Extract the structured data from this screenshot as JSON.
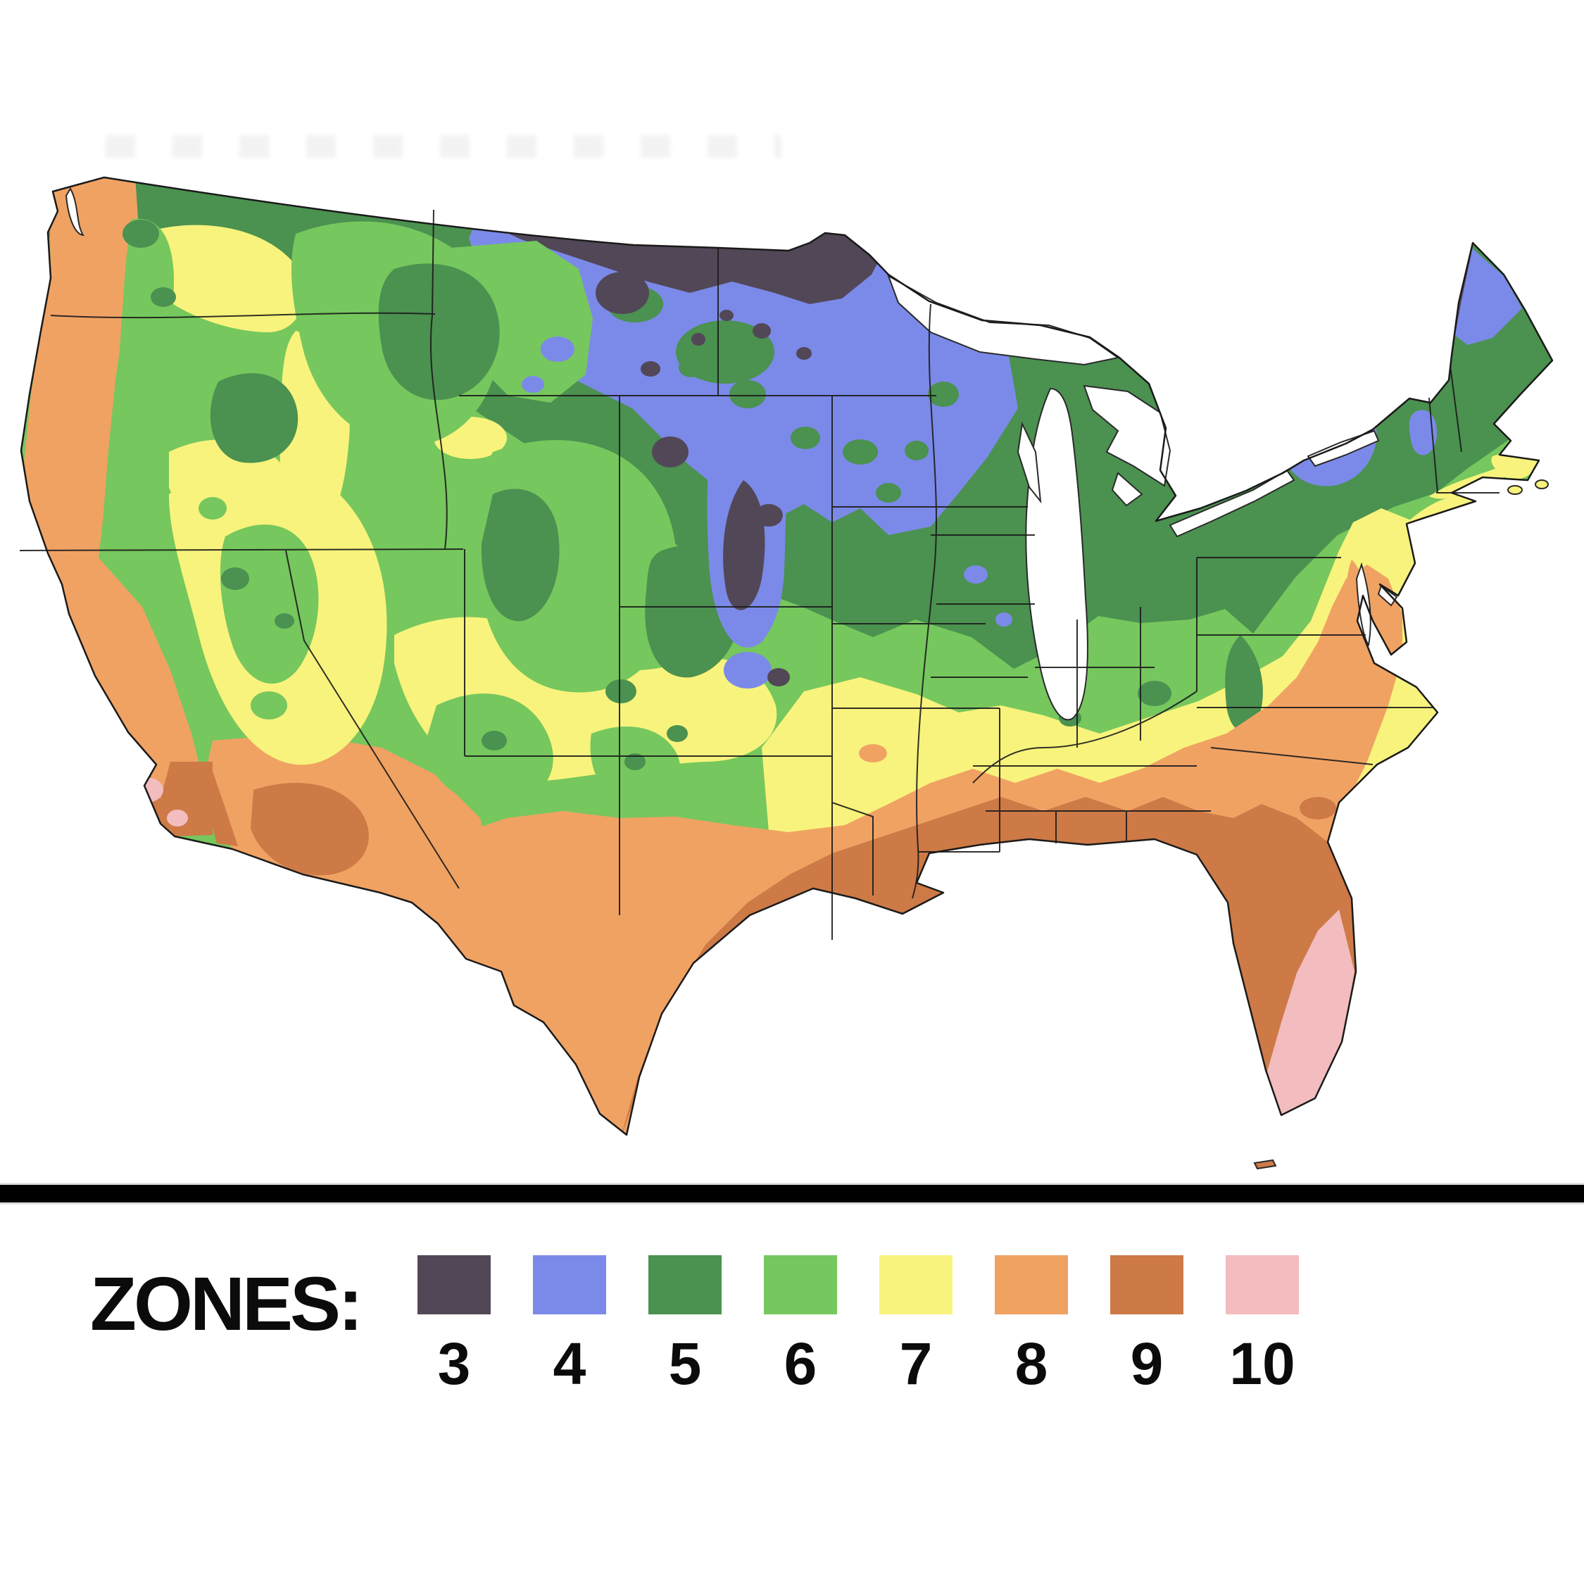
{
  "page": {
    "background": "#ffffff"
  },
  "map": {
    "region": "Contiguous United States",
    "subject": "Plant hardiness zones",
    "ocean_color": "#ffffff",
    "outline_color": "#1a1a1a",
    "state_line_color": "#1b1b1b",
    "lake_color": "#ffffff"
  },
  "divider": {
    "color": "#000000"
  },
  "legend": {
    "label": "ZONES:",
    "zones": [
      {
        "number": "3",
        "color": "#524757"
      },
      {
        "number": "4",
        "color": "#7b8ae8"
      },
      {
        "number": "5",
        "color": "#4b9150"
      },
      {
        "number": "6",
        "color": "#76c75d"
      },
      {
        "number": "7",
        "color": "#f8f37c"
      },
      {
        "number": "8",
        "color": "#f0a263"
      },
      {
        "number": "9",
        "color": "#cd7a47"
      },
      {
        "number": "10",
        "color": "#f3bcbe"
      }
    ]
  }
}
